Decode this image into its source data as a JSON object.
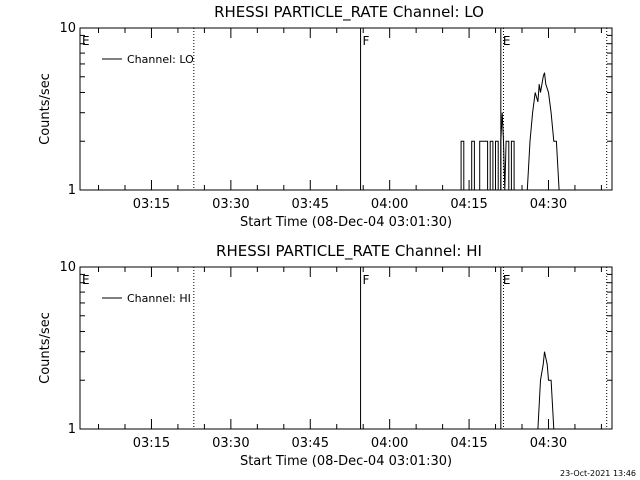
{
  "chart_data": [
    {
      "type": "line",
      "title": "RHESSI PARTICLE_RATE Channel: LO",
      "xlabel": "Start Time (08-Dec-04 03:01:30)",
      "ylabel": "Counts/sec",
      "y_scale": "log",
      "ylim": [
        1,
        10
      ],
      "y_ticks": [
        "1",
        "10"
      ],
      "xlim": [
        "03:01:30",
        "04:42:00"
      ],
      "x_ticks": [
        "03:15",
        "03:30",
        "03:45",
        "04:00",
        "04:15",
        "04:30"
      ],
      "legend": {
        "label": "Channel: LO",
        "position": "top-left"
      },
      "flags": [
        {
          "label": "E",
          "time": "03:01:30",
          "style": "none"
        },
        {
          "label": "F",
          "time": "03:54:30",
          "style": "solid"
        },
        {
          "label": "E",
          "time": "04:21:00",
          "style": "solid"
        }
      ],
      "dotted_markers": [
        "03:23:00",
        "04:21:30",
        "04:41:00"
      ],
      "series": [
        {
          "name": "Channel: LO",
          "points": [
            [
              "04:13:30",
              1
            ],
            [
              "04:13:30",
              2
            ],
            [
              "04:14:00",
              2
            ],
            [
              "04:14:00",
              1
            ],
            [
              "04:15:30",
              1
            ],
            [
              "04:15:30",
              2
            ],
            [
              "04:16:00",
              2
            ],
            [
              "04:16:00",
              1
            ],
            [
              "04:17:00",
              1
            ],
            [
              "04:17:00",
              2
            ],
            [
              "04:18:30",
              2
            ],
            [
              "04:18:30",
              1
            ],
            [
              "04:19:00",
              1
            ],
            [
              "04:19:00",
              2
            ],
            [
              "04:19:30",
              2
            ],
            [
              "04:19:30",
              1
            ],
            [
              "04:20:00",
              1
            ],
            [
              "04:20:00",
              2
            ],
            [
              "04:20:30",
              2
            ],
            [
              "04:20:30",
              1
            ],
            [
              "04:21:00",
              1
            ],
            [
              "04:21:00",
              2
            ],
            [
              "04:21:15",
              3
            ],
            [
              "04:21:30",
              2
            ],
            [
              "04:21:45",
              1
            ],
            [
              "04:22:00",
              2
            ],
            [
              "04:22:30",
              2
            ],
            [
              "04:22:30",
              1
            ],
            [
              "04:23:00",
              1
            ],
            [
              "04:23:00",
              2
            ],
            [
              "04:23:30",
              2
            ],
            [
              "04:23:30",
              1
            ],
            [
              "04:26:00",
              1
            ],
            [
              "04:26:30",
              2
            ],
            [
              "04:27:00",
              3
            ],
            [
              "04:27:30",
              4
            ],
            [
              "04:28:00",
              3.5
            ],
            [
              "04:28:15",
              4.5
            ],
            [
              "04:28:30",
              4
            ],
            [
              "04:29:00",
              5
            ],
            [
              "04:29:15",
              5.3
            ],
            [
              "04:29:30",
              4.5
            ],
            [
              "04:30:00",
              4
            ],
            [
              "04:30:30",
              3
            ],
            [
              "04:31:00",
              2
            ],
            [
              "04:31:30",
              2
            ],
            [
              "04:32:00",
              1
            ]
          ]
        }
      ]
    },
    {
      "type": "line",
      "title": "RHESSI PARTICLE_RATE Channel: HI",
      "xlabel": "Start Time (08-Dec-04 03:01:30)",
      "ylabel": "Counts/sec",
      "y_scale": "log",
      "ylim": [
        1,
        10
      ],
      "y_ticks": [
        "1",
        "10"
      ],
      "xlim": [
        "03:01:30",
        "04:42:00"
      ],
      "x_ticks": [
        "03:15",
        "03:30",
        "03:45",
        "04:00",
        "04:15",
        "04:30"
      ],
      "legend": {
        "label": "Channel: HI",
        "position": "top-left"
      },
      "flags": [
        {
          "label": "E",
          "time": "03:01:30",
          "style": "none"
        },
        {
          "label": "F",
          "time": "03:54:30",
          "style": "solid"
        },
        {
          "label": "E",
          "time": "04:21:00",
          "style": "solid"
        }
      ],
      "dotted_markers": [
        "03:23:00",
        "04:21:30",
        "04:41:00"
      ],
      "series": [
        {
          "name": "Channel: HI",
          "points": [
            [
              "04:28:00",
              1
            ],
            [
              "04:28:30",
              2
            ],
            [
              "04:29:00",
              2.5
            ],
            [
              "04:29:15",
              3
            ],
            [
              "04:29:45",
              2.5
            ],
            [
              "04:30:00",
              2
            ],
            [
              "04:30:30",
              2
            ],
            [
              "04:31:00",
              1
            ]
          ]
        }
      ]
    }
  ],
  "footer": {
    "timestamp": "23-Oct-2021 13:46"
  }
}
